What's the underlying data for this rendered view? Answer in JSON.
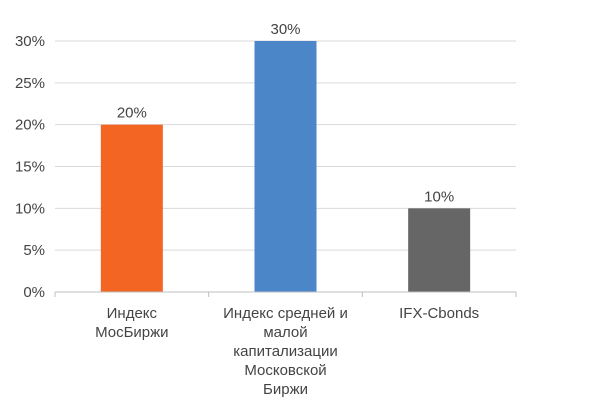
{
  "chart_data": {
    "type": "bar",
    "categories": [
      [
        "Индекс",
        "МосБиржи"
      ],
      [
        "Индекс средней и",
        "малой",
        "капитализации",
        "Московской",
        "Биржи"
      ],
      [
        "IFX-Cbonds"
      ]
    ],
    "values": [
      20,
      30,
      10
    ],
    "value_labels": [
      "20%",
      "30%",
      "10%"
    ],
    "colors": [
      "#f26522",
      "#4a86c8",
      "#666666"
    ],
    "yticks": [
      "0%",
      "5%",
      "10%",
      "15%",
      "20%",
      "25%",
      "30%"
    ],
    "ylim": [
      0,
      30
    ],
    "grid": true,
    "title": "",
    "xlabel": "",
    "ylabel": ""
  }
}
